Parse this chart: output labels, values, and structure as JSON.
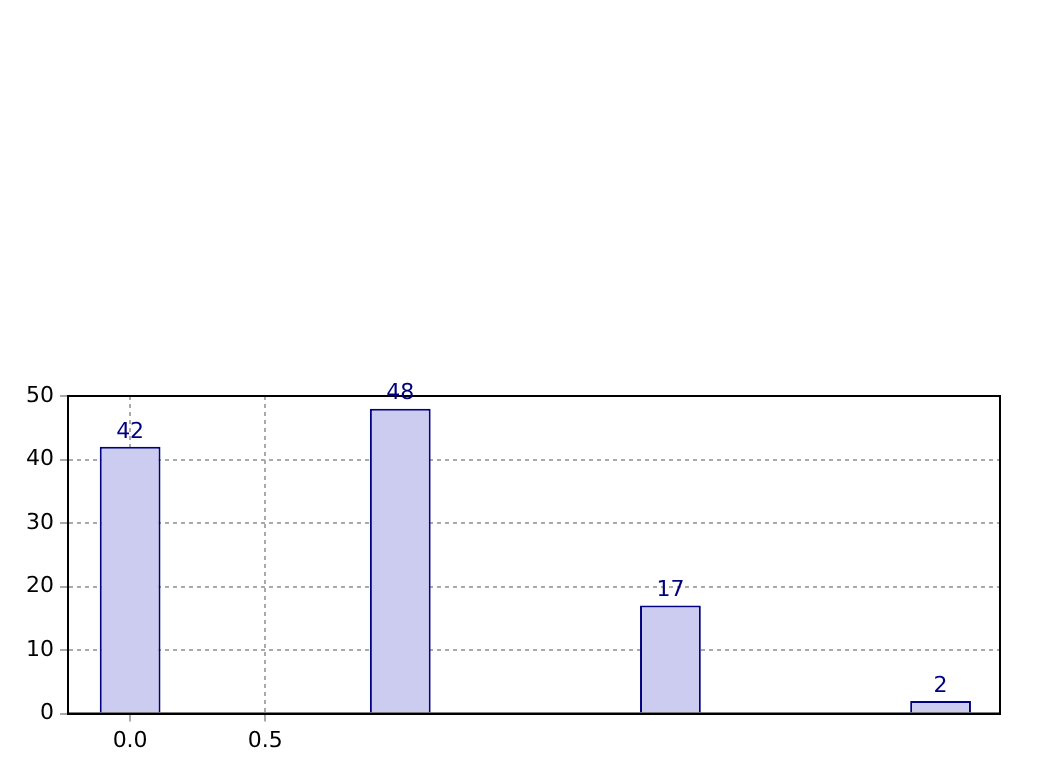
{
  "chart_data": {
    "type": "bar",
    "x": [
      0,
      1,
      2,
      3
    ],
    "values": [
      42,
      48,
      17,
      2
    ],
    "color": "#ccccf0",
    "data_labels": true,
    "xlim": [
      -0.23,
      3.22
    ],
    "xticks": [
      {
        "value": 0,
        "label": "0.0"
      },
      {
        "value": 0.5,
        "label": "0.5"
      }
    ],
    "ylim": [
      0,
      50
    ],
    "yticks": [
      0,
      10,
      20,
      30,
      40,
      50
    ],
    "grid": true
  }
}
